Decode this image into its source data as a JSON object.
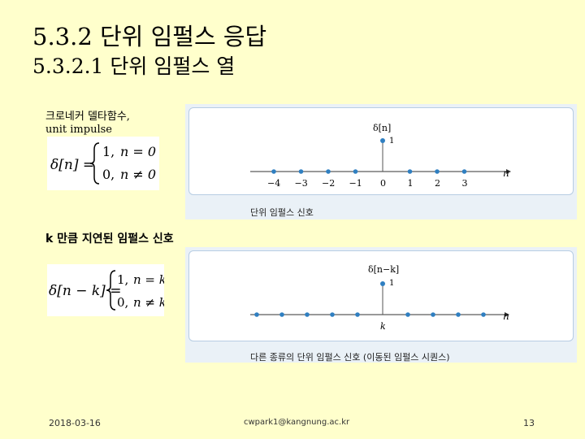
{
  "slide": {
    "title": "5.3.2 단위 임펄스 응답",
    "subtitle": "5.3.2.1 단위 임펄스 열",
    "label_kronecker": "크로네커 델타함수,",
    "label_unit_impulse": "unit impulse",
    "label_delayed": "k 만큼 지연된 임펄스 신호"
  },
  "eq1": {
    "lhs": "δ[n] =",
    "case1_value": "1,",
    "case1_cond": "n = 0",
    "case2_value": "0,",
    "case2_cond": "n ≠ 0"
  },
  "eq2": {
    "lhs": "δ[n − k] =",
    "case1_value": "1,",
    "case1_cond": "n = k",
    "case2_value": "0,",
    "case2_cond": "n ≠ k"
  },
  "figure1": {
    "y_label": "δ[n]",
    "impulse_value_label": "1",
    "axis_label": "n",
    "tick_labels": [
      "−4",
      "−3",
      "−2",
      "−1",
      "0",
      "1",
      "2",
      "3"
    ],
    "caption": "단위 임펄스 신호"
  },
  "figure2": {
    "y_label": "δ[n−k]",
    "impulse_value_label": "1",
    "axis_label": "n",
    "tick_label_k": "k",
    "caption": "다른 종류의 단위 임펄스 신호 (이동된 임펄스 시퀀스)"
  },
  "footer": {
    "date": "2018-03-16",
    "email": "cwpark1@kangnung.ac.kr",
    "page": "13"
  },
  "colors": {
    "background": "#ffffcc",
    "panel": "#eaf1f7",
    "stem_color": "#2f7fc1",
    "panel_border": "#b7cde3"
  }
}
